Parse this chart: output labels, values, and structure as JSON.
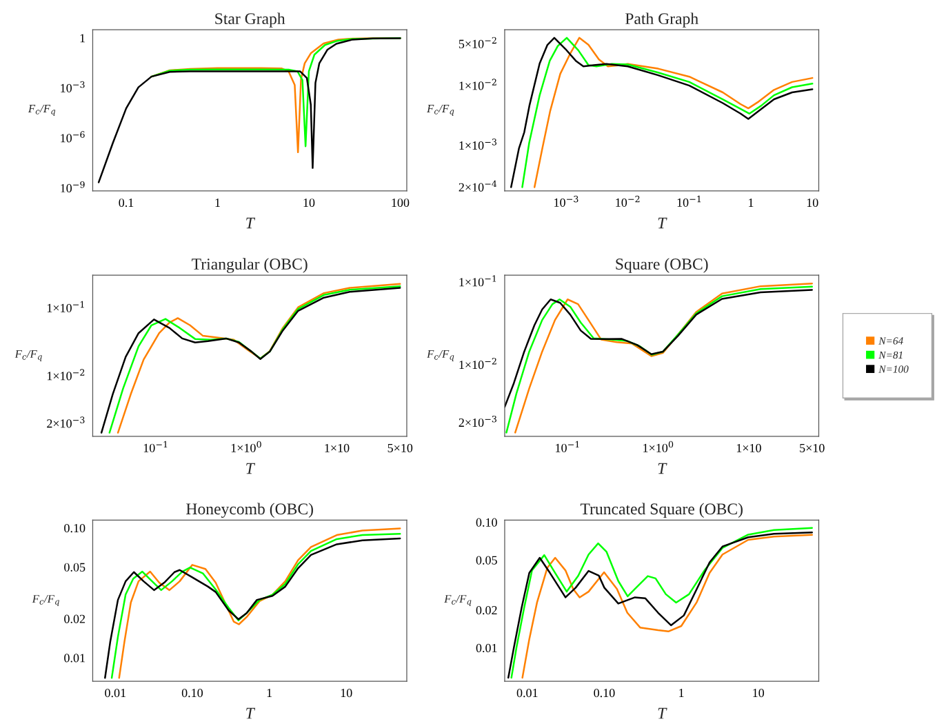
{
  "chart_data": [
    {
      "type": "line",
      "title": "Star Graph",
      "xlabel": "T",
      "ylabel": "F$_{c}$/F$_{q}$",
      "log": "xy",
      "xlim": [
        0.043,
        118
      ],
      "ylim": [
        6.7e-10,
        3.1
      ],
      "xticks": [
        0.1,
        1,
        10,
        100
      ],
      "yticks": [
        {
          "value": 1e-09,
          "label": "10$^{−9}$"
        },
        {
          "value": 1e-06,
          "label": "10$^{−6}$"
        },
        {
          "value": 0.001,
          "label": "10$^{−3}$"
        },
        1
      ],
      "series": [
        {
          "color": "#ff8000",
          "x": [
            0.189,
            0.3,
            0.5,
            1,
            3,
            5,
            6,
            7,
            7.6,
            8.2,
            9,
            10.5,
            14.5,
            21,
            30,
            50,
            100
          ],
          "values": [
            0.0048,
            0.0115,
            0.014,
            0.0155,
            0.0155,
            0.015,
            0.01,
            0.0015,
            1.4e-07,
            0.0033,
            0.03,
            0.12,
            0.47,
            0.8,
            0.92,
            0.97,
            0.98
          ]
        },
        {
          "color": "#00ff00",
          "x": [
            0.189,
            0.3,
            0.5,
            1,
            3,
            6,
            7.5,
            8.5,
            9.2,
            10,
            11.5,
            15,
            20,
            30,
            100
          ],
          "values": [
            0.0048,
            0.011,
            0.0125,
            0.013,
            0.013,
            0.0125,
            0.01,
            0.003,
            3.2e-07,
            0.01,
            0.1,
            0.38,
            0.65,
            0.88,
            0.98
          ]
        },
        {
          "color": "#000000",
          "x": [
            0.05,
            0.0714,
            0.1,
            0.136,
            0.189,
            0.3,
            0.5,
            1,
            3,
            8,
            9.5,
            10.5,
            11,
            11.8,
            13,
            16,
            20,
            30,
            50,
            100
          ],
          "values": [
            2.2e-09,
            5e-07,
            6e-05,
            0.0011,
            0.0048,
            0.0093,
            0.01,
            0.01,
            0.01,
            0.01,
            0.004,
            0.0001,
            1.6e-08,
            0.002,
            0.03,
            0.2,
            0.45,
            0.8,
            0.93,
            0.97
          ]
        }
      ]
    },
    {
      "type": "line",
      "title": "Path Graph",
      "xlabel": "T",
      "ylabel": "F$_{c}$/F$_{q}$",
      "log": "xy",
      "xlim": [
        0.0001,
        12.7
      ],
      "ylim": [
        0.000173,
        0.0859
      ],
      "xticks": [
        {
          "value": 0.001,
          "label": "10$^{−3}$"
        },
        {
          "value": 0.01,
          "label": "10$^{−2}$"
        },
        {
          "value": 0.1,
          "label": "10$^{−1}$"
        },
        1,
        10
      ],
      "yticks": [
        {
          "value": 0.0002,
          "label": "2×10$^{−4}$"
        },
        {
          "value": 0.001,
          "label": "1×10$^{−3}$"
        },
        {
          "value": 0.01,
          "label": "1×10$^{−2}$"
        },
        {
          "value": 0.05,
          "label": "5×10$^{−2}$"
        }
      ],
      "series": [
        {
          "color": "#ff8000",
          "x": [
            0.000305,
            0.00041,
            0.00055,
            0.0008,
            0.00118,
            0.00163,
            0.0023,
            0.0034,
            0.00476,
            0.0074,
            0.01,
            0.0312,
            0.1,
            0.35,
            0.68,
            0.91,
            1.34,
            2.38,
            4.68,
            10
          ],
          "values": [
            0.0002,
            0.0009,
            0.0038,
            0.0157,
            0.0354,
            0.063,
            0.048,
            0.0274,
            0.021,
            0.022,
            0.023,
            0.0192,
            0.0141,
            0.0077,
            0.0049,
            0.00417,
            0.0054,
            0.0085,
            0.0115,
            0.0134
          ]
        },
        {
          "color": "#00ff00",
          "x": [
            0.000193,
            0.00025,
            0.00037,
            0.00054,
            0.00073,
            0.00102,
            0.00157,
            0.0023,
            0.0031,
            0.0055,
            0.01,
            0.0312,
            0.1,
            0.35,
            0.68,
            0.95,
            1.47,
            2.38,
            4.68,
            10
          ],
          "values": [
            0.0002,
            0.0011,
            0.0069,
            0.026,
            0.046,
            0.063,
            0.039,
            0.022,
            0.021,
            0.023,
            0.0226,
            0.0165,
            0.0115,
            0.0059,
            0.00408,
            0.0034,
            0.0046,
            0.0069,
            0.0094,
            0.0108
          ]
        },
        {
          "color": "#000000",
          "x": [
            0.000127,
            0.000171,
            0.000208,
            0.000252,
            0.00037,
            0.000495,
            0.00064,
            0.00097,
            0.00143,
            0.0019,
            0.0028,
            0.0045,
            0.01,
            0.0312,
            0.1,
            0.35,
            0.68,
            0.91,
            1.34,
            2.38,
            4.68,
            10
          ],
          "values": [
            0.0002,
            0.0009,
            0.00166,
            0.0046,
            0.0235,
            0.048,
            0.063,
            0.041,
            0.026,
            0.021,
            0.022,
            0.023,
            0.021,
            0.0149,
            0.01,
            0.0051,
            0.0034,
            0.00277,
            0.00376,
            0.0059,
            0.0077,
            0.0087
          ]
        }
      ]
    },
    {
      "type": "line",
      "title": "Triangular (OBC)",
      "xlabel": "T",
      "ylabel": "F$_{c}$/F$_{q}$",
      "log": "xy",
      "xlim": [
        0.0201,
        59.3
      ],
      "ylim": [
        0.00129,
        0.303
      ],
      "xticks": [
        {
          "value": 0.1,
          "label": "10$^{−1}$"
        },
        {
          "value": 1,
          "label": "1×10$^{0}$"
        },
        {
          "value": 10,
          "label": "1×10"
        },
        {
          "value": 50,
          "label": "5×10"
        }
      ],
      "yticks": [
        {
          "value": 0.002,
          "label": "2×10$^{−3}$"
        },
        {
          "value": 0.01,
          "label": "1×10$^{−2}$"
        },
        {
          "value": 0.1,
          "label": "1×10$^{−1}$"
        }
      ],
      "series": [
        {
          "color": "#ff8000",
          "x": [
            0.0382,
            0.053,
            0.0735,
            0.109,
            0.1415,
            0.175,
            0.239,
            0.332,
            0.525,
            0.728,
            1,
            1.43,
            1.82,
            2.53,
            3.74,
            7.2,
            13.9,
            50
          ],
          "values": [
            0.00146,
            0.0054,
            0.0174,
            0.0425,
            0.0607,
            0.0707,
            0.0555,
            0.0388,
            0.0361,
            0.034,
            0.0249,
            0.018,
            0.0232,
            0.0507,
            0.102,
            0.165,
            0.197,
            0.225
          ]
        },
        {
          "color": "#00ff00",
          "x": [
            0.0308,
            0.0435,
            0.0645,
            0.0895,
            0.128,
            0.184,
            0.272,
            0.404,
            0.598,
            0.83,
            1.14,
            1.43,
            1.82,
            2.53,
            3.74,
            7.2,
            13.9,
            50
          ],
          "values": [
            0.00146,
            0.0065,
            0.0272,
            0.0555,
            0.0687,
            0.0507,
            0.0349,
            0.034,
            0.0355,
            0.0316,
            0.0228,
            0.018,
            0.0228,
            0.0485,
            0.0964,
            0.155,
            0.185,
            0.208
          ]
        },
        {
          "color": "#000000",
          "x": [
            0.0251,
            0.0335,
            0.0465,
            0.0645,
            0.0955,
            0.1415,
            0.196,
            0.272,
            0.378,
            0.598,
            0.83,
            1.14,
            1.43,
            1.82,
            2.53,
            3.74,
            7.2,
            13.9,
            50
          ],
          "values": [
            0.00146,
            0.0054,
            0.019,
            0.0425,
            0.0675,
            0.0507,
            0.0355,
            0.031,
            0.0325,
            0.0355,
            0.031,
            0.0228,
            0.0177,
            0.0228,
            0.0464,
            0.0906,
            0.1415,
            0.172,
            0.197
          ]
        }
      ]
    },
    {
      "type": "line",
      "title": "Square (OBC)",
      "xlabel": "T",
      "ylabel": "F$_{c}$/F$_{q}$",
      "log": "xy",
      "xlim": [
        0.0202,
        59.3
      ],
      "ylim": [
        0.00136,
        0.121
      ],
      "xticks": [
        {
          "value": 0.1,
          "label": "10$^{−1}$"
        },
        {
          "value": 1,
          "label": "1×10$^{0}$"
        },
        {
          "value": 10,
          "label": "1×10"
        },
        {
          "value": 50,
          "label": "5×10"
        }
      ],
      "yticks": [
        {
          "value": 0.002,
          "label": "2×10$^{−3}$"
        },
        {
          "value": 0.01,
          "label": "1×10$^{−2}$"
        },
        {
          "value": 0.1,
          "label": "1×10$^{−1}$"
        }
      ],
      "legend": "right",
      "series": [
        {
          "name": "N=64",
          "color": "#ff8000",
          "x": [
            0.0264,
            0.0377,
            0.0524,
            0.0726,
            0.1,
            0.1305,
            0.17,
            0.235,
            0.348,
            0.515,
            0.841,
            1.13,
            1.66,
            2.63,
            5.07,
            13.5,
            50
          ],
          "values": [
            0.00151,
            0.00516,
            0.0144,
            0.0347,
            0.0616,
            0.054,
            0.0347,
            0.0201,
            0.0187,
            0.018,
            0.0127,
            0.0139,
            0.0232,
            0.0434,
            0.0724,
            0.0889,
            0.0957
          ]
        },
        {
          "name": "N=81",
          "color": "#00ff00",
          "x": [
            0.0211,
            0.0272,
            0.0377,
            0.0524,
            0.068,
            0.0816,
            0.107,
            0.1395,
            0.194,
            0.306,
            0.452,
            0.627,
            0.85,
            1.13,
            1.66,
            2.63,
            5.07,
            13.5,
            50
          ],
          "values": [
            0.00151,
            0.00447,
            0.0144,
            0.0347,
            0.054,
            0.0616,
            0.0502,
            0.0324,
            0.0208,
            0.0201,
            0.0194,
            0.0167,
            0.0132,
            0.0144,
            0.0232,
            0.0418,
            0.0673,
            0.082,
            0.0877
          ]
        },
        {
          "name": "N=100",
          "color": "#000000",
          "x": [
            0.0202,
            0.0255,
            0.0332,
            0.043,
            0.0524,
            0.065,
            0.0828,
            0.107,
            0.1395,
            0.181,
            0.268,
            0.397,
            0.587,
            0.841,
            1.13,
            1.66,
            2.63,
            5.07,
            13.5,
            50
          ],
          "values": [
            0.00309,
            0.00598,
            0.0144,
            0.03,
            0.0466,
            0.0616,
            0.056,
            0.0403,
            0.0259,
            0.0205,
            0.0204,
            0.0205,
            0.0173,
            0.0134,
            0.0144,
            0.0224,
            0.0403,
            0.0625,
            0.0751,
            0.0802
          ]
        }
      ]
    },
    {
      "type": "line",
      "title": "Honeycomb (OBC)",
      "xlabel": "T",
      "ylabel": "F$_{c}$/F$_{q}$",
      "log": "xy",
      "xlim": [
        0.00508,
        61.1
      ],
      "ylim": [
        0.0066,
        0.115
      ],
      "xticks": [
        0.01,
        {
          "value": 0.1,
          "label": "0.10"
        },
        1,
        10
      ],
      "yticks": [
        0.01,
        0.02,
        0.05,
        {
          "value": 0.1,
          "label": "0.10"
        }
      ],
      "series": [
        {
          "color": "#ff8000",
          "x": [
            0.0112,
            0.0131,
            0.0159,
            0.02,
            0.0283,
            0.0371,
            0.0504,
            0.0685,
            0.1,
            0.148,
            0.201,
            0.345,
            0.403,
            0.508,
            0.746,
            1.1,
            1.61,
            2.37,
            3.48,
            7.52,
            16.2,
            50
          ],
          "values": [
            0.007,
            0.0132,
            0.0267,
            0.0388,
            0.0461,
            0.0379,
            0.0332,
            0.0388,
            0.0519,
            0.0483,
            0.0379,
            0.019,
            0.0181,
            0.0206,
            0.0273,
            0.0306,
            0.0388,
            0.0565,
            0.0713,
            0.0881,
            0.0954,
            0.099
          ]
        },
        {
          "color": "#00ff00",
          "x": [
            0.00898,
            0.0108,
            0.0136,
            0.0171,
            0.0224,
            0.0294,
            0.0394,
            0.0545,
            0.0741,
            0.0933,
            0.137,
            0.201,
            0.296,
            0.397,
            0.508,
            0.746,
            1.1,
            1.61,
            2.37,
            3.48,
            7.52,
            16.2,
            50
          ],
          "values": [
            0.007,
            0.0145,
            0.0307,
            0.0407,
            0.0461,
            0.0393,
            0.0332,
            0.0388,
            0.0461,
            0.0496,
            0.0447,
            0.0336,
            0.0243,
            0.0194,
            0.0221,
            0.0279,
            0.0306,
            0.037,
            0.0526,
            0.0665,
            0.082,
            0.0881,
            0.0902
          ]
        },
        {
          "color": "#000000",
          "x": [
            0.00734,
            0.00857,
            0.0108,
            0.0136,
            0.0174,
            0.0233,
            0.0318,
            0.0432,
            0.0587,
            0.0685,
            0.1,
            0.16,
            0.201,
            0.296,
            0.397,
            0.508,
            0.69,
            1.1,
            1.61,
            2.37,
            3.48,
            7.52,
            16.2,
            50
          ],
          "values": [
            0.007,
            0.0132,
            0.0279,
            0.0388,
            0.0457,
            0.0388,
            0.0332,
            0.0379,
            0.0457,
            0.0474,
            0.0416,
            0.0353,
            0.0321,
            0.0232,
            0.0198,
            0.0221,
            0.0279,
            0.03,
            0.0353,
            0.049,
            0.062,
            0.0748,
            0.0802,
            0.0829
          ]
        }
      ]
    },
    {
      "type": "line",
      "title": "Truncated Square (OBC)",
      "xlabel": "T",
      "ylabel": "F$_{c}$/F$_{q}$",
      "log": "xy",
      "xlim": [
        0.00508,
        61.1
      ],
      "ylim": [
        0.00542,
        0.104
      ],
      "xticks": [
        0.01,
        {
          "value": 0.1,
          "label": "0.10"
        },
        1,
        10
      ],
      "yticks": [
        0.01,
        0.02,
        0.05,
        {
          "value": 0.1,
          "label": "0.10"
        }
      ],
      "series": [
        {
          "color": "#ff8000",
          "x": [
            0.00863,
            0.0106,
            0.0134,
            0.0182,
            0.023,
            0.0313,
            0.0394,
            0.0478,
            0.0625,
            0.0993,
            0.146,
            0.199,
            0.292,
            0.5,
            0.68,
            1,
            1.59,
            2.33,
            3.43,
            7.4,
            16,
            50
          ],
          "values": [
            0.00578,
            0.0117,
            0.0231,
            0.0434,
            0.0521,
            0.0413,
            0.0294,
            0.0252,
            0.028,
            0.0399,
            0.0294,
            0.019,
            0.0145,
            0.0138,
            0.0135,
            0.0149,
            0.0231,
            0.0394,
            0.0553,
            0.0723,
            0.0769,
            0.0792
          ]
        },
        {
          "color": "#00ff00",
          "x": [
            0.00621,
            0.00724,
            0.0091,
            0.0115,
            0.0166,
            0.023,
            0.0325,
            0.0459,
            0.0625,
            0.0832,
            0.107,
            0.152,
            0.201,
            0.25,
            0.367,
            0.463,
            0.63,
            0.857,
            1.26,
            2.0,
            3.43,
            7.4,
            16,
            50
          ],
          "values": [
            0.00578,
            0.0101,
            0.0209,
            0.0413,
            0.0547,
            0.0394,
            0.028,
            0.0375,
            0.0553,
            0.0678,
            0.058,
            0.034,
            0.0257,
            0.0294,
            0.0372,
            0.0357,
            0.0267,
            0.0229,
            0.0267,
            0.0413,
            0.0624,
            0.0796,
            0.0865,
            0.0899
          ]
        },
        {
          "color": "#000000",
          "x": [
            0.00566,
            0.0067,
            0.00844,
            0.0106,
            0.0145,
            0.0197,
            0.0313,
            0.0425,
            0.0625,
            0.085,
            0.1,
            0.152,
            0.25,
            0.34,
            0.5,
            0.735,
            1.08,
            1.59,
            2.33,
            3.43,
            7.4,
            16,
            50
          ],
          "values": [
            0.00578,
            0.0101,
            0.0209,
            0.0394,
            0.0521,
            0.0394,
            0.0252,
            0.0301,
            0.0409,
            0.0375,
            0.0301,
            0.0225,
            0.0252,
            0.0248,
            0.019,
            0.0151,
            0.0181,
            0.0294,
            0.0478,
            0.064,
            0.0758,
            0.0807,
            0.0828
          ]
        }
      ]
    }
  ]
}
